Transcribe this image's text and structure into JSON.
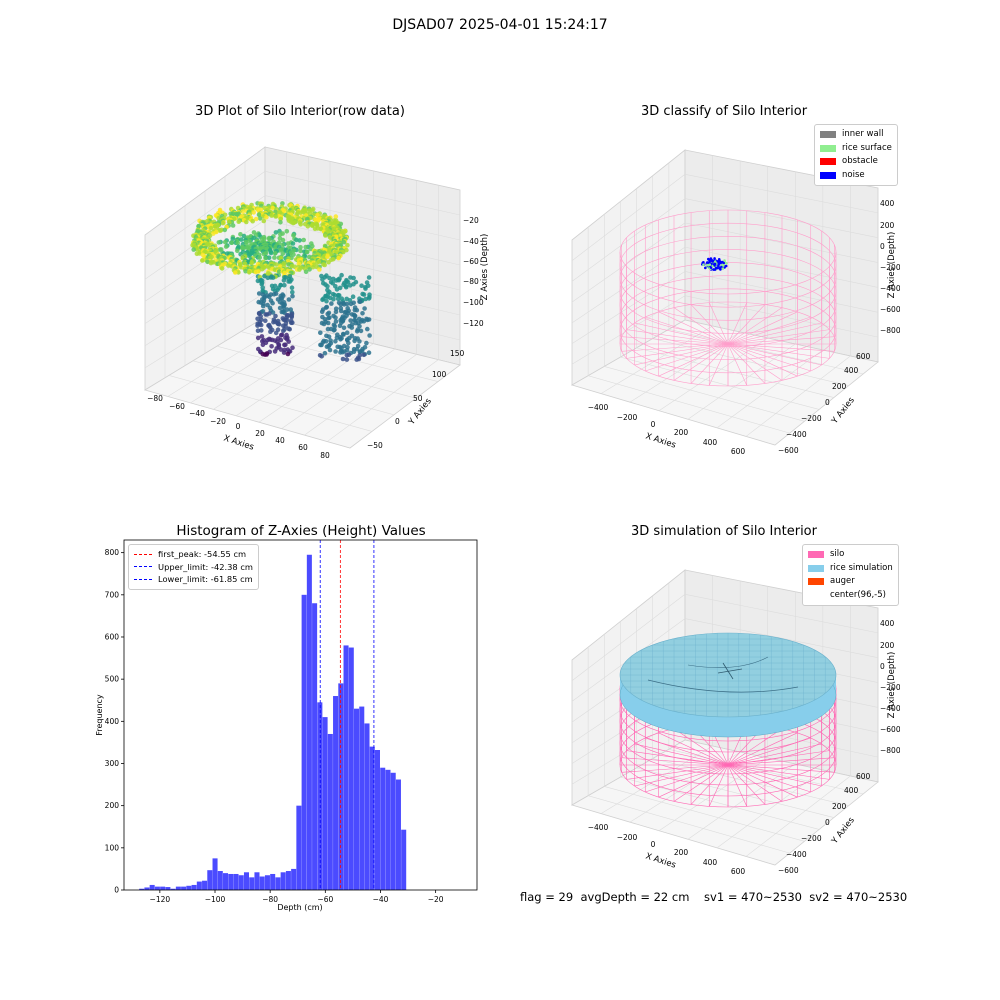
{
  "suptitle": "DJSAD07 2025-04-01 15:24:17",
  "footer": "flag = 29  avgDepth = 22 cm    sv1 = 470~2530  sv2 = 470~2530",
  "colors": {
    "inner_wall": "#808080",
    "rice_surface": "#90ee90",
    "obstacle": "#ff0000",
    "noise": "#0000ff",
    "silo": "#ff69b4",
    "rice_simulation": "#87ceeb",
    "auger": "#ff4500",
    "hist_bar": "#4b4bff"
  },
  "chart_data": [
    {
      "type": "scatter",
      "title": "3D Plot of Silo Interior(row data)",
      "xlabel": "X Axies",
      "ylabel": "Y Axies",
      "zlabel": "Z Axies (Depth)",
      "x_ticks": [
        "−80",
        "−60",
        "−40",
        "−20",
        "0",
        "20",
        "40",
        "60",
        "80"
      ],
      "y_ticks": [
        "−50",
        "0",
        "50",
        "100",
        "150"
      ],
      "z_ticks": [
        "−20",
        "−40",
        "−60",
        "−80",
        "−100",
        "−120"
      ],
      "colormap": "viridis"
    },
    {
      "type": "scatter",
      "title": "3D classify of Silo Interior",
      "xlabel": "X Axies",
      "ylabel": "Y Axies",
      "zlabel": "Z Axies (Depth)",
      "x_ticks": [
        "−400",
        "−200",
        "0",
        "200",
        "400",
        "600"
      ],
      "y_ticks": [
        "−600",
        "−400",
        "−200",
        "0",
        "200",
        "400",
        "600"
      ],
      "z_ticks": [
        "400",
        "200",
        "0",
        "−200",
        "−400",
        "−600",
        "−800"
      ],
      "legend": [
        "inner wall",
        "rice surface",
        "obstacle",
        "noise"
      ],
      "legend_loc": "upper right"
    },
    {
      "type": "bar",
      "title": "Histogram of Z-Axies (Height) Values",
      "xlabel": "Depth (cm)",
      "ylabel": "Frequency",
      "xlim": [
        -133,
        -5
      ],
      "ylim": [
        0,
        830
      ],
      "x_ticks": [
        -120,
        -100,
        -80,
        -60,
        -40,
        -20
      ],
      "y_ticks": [
        0,
        100,
        200,
        300,
        400,
        500,
        600,
        700,
        800
      ],
      "bin_start": -127.5,
      "bin_width": 1.9,
      "values": [
        3,
        6,
        12,
        8,
        8,
        7,
        3,
        8,
        8,
        10,
        12,
        20,
        22,
        47,
        75,
        45,
        40,
        38,
        38,
        35,
        42,
        30,
        42,
        32,
        35,
        38,
        30,
        42,
        45,
        50,
        200,
        700,
        795,
        680,
        445,
        410,
        370,
        460,
        490,
        580,
        575,
        430,
        435,
        395,
        340,
        332,
        290,
        285,
        278,
        262,
        143
      ],
      "vlines": [
        {
          "name": "first_peak: -54.55 cm",
          "x": -54.55,
          "color": "#ff0000"
        },
        {
          "name": "Upper_limit: -42.38 cm",
          "x": -42.38,
          "color": "#0000ff"
        },
        {
          "name": "Lower_limit: -61.85 cm",
          "x": -61.85,
          "color": "#0000ff"
        }
      ],
      "legend_loc": "upper left"
    },
    {
      "type": "scatter",
      "title": "3D simulation of Silo Interior",
      "xlabel": "X Axies",
      "ylabel": "Y Axies",
      "zlabel": "Z Axies (Depth)",
      "x_ticks": [
        "−400",
        "−200",
        "0",
        "200",
        "400",
        "600"
      ],
      "y_ticks": [
        "−600",
        "−400",
        "−200",
        "0",
        "200",
        "400",
        "600"
      ],
      "z_ticks": [
        "400",
        "200",
        "0",
        "−200",
        "−400",
        "−600",
        "−800"
      ],
      "legend": [
        "silo",
        "rice simulation",
        "auger",
        "center(96,-5)"
      ],
      "legend_loc": "upper right"
    }
  ]
}
